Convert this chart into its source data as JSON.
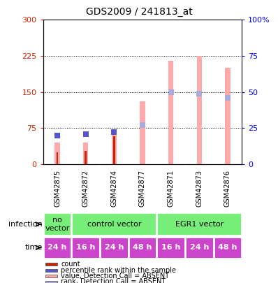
{
  "title": "GDS2009 / 241813_at",
  "samples": [
    "GSM42875",
    "GSM42872",
    "GSM42874",
    "GSM42877",
    "GSM42871",
    "GSM42873",
    "GSM42876"
  ],
  "absent_value_bars": [
    45,
    45,
    65,
    130,
    215,
    225,
    200
  ],
  "absent_rank_bars": [
    20,
    21,
    22,
    27,
    50,
    49,
    46
  ],
  "count_values": [
    25,
    28,
    58,
    0,
    0,
    0,
    0
  ],
  "rank_values": [
    20,
    21,
    22,
    0,
    0,
    0,
    0
  ],
  "ylim_left": [
    0,
    300
  ],
  "ylim_right": [
    0,
    100
  ],
  "yticks_left": [
    0,
    75,
    150,
    225,
    300
  ],
  "yticks_right": [
    0,
    25,
    50,
    75,
    100
  ],
  "time_labels": [
    "24 h",
    "16 h",
    "24 h",
    "48 h",
    "16 h",
    "24 h",
    "48 h"
  ],
  "time_color": "#cc44cc",
  "count_color": "#cc2200",
  "rank_color": "#5555cc",
  "absent_value_color": "#ffaaaa",
  "absent_rank_color": "#aaaadd",
  "bg_color": "#bbbbbb",
  "green_color": "#77ee77",
  "legend_items": [
    {
      "label": "count",
      "color": "#cc2200"
    },
    {
      "label": "percentile rank within the sample",
      "color": "#5555cc"
    },
    {
      "label": "value, Detection Call = ABSENT",
      "color": "#ffaaaa"
    },
    {
      "label": "rank, Detection Call = ABSENT",
      "color": "#aaaadd"
    }
  ]
}
